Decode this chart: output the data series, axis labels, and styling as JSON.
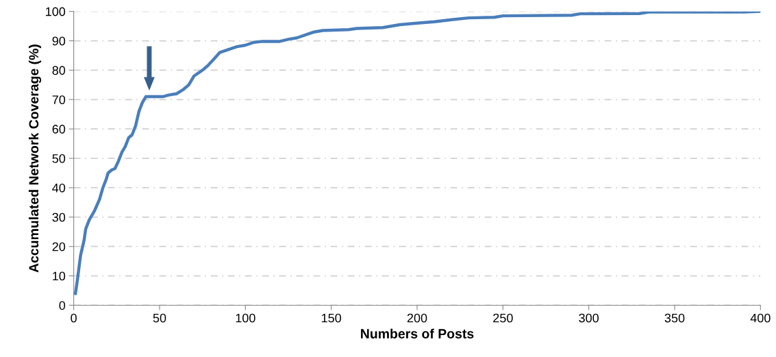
{
  "chart_data": {
    "type": "line",
    "xlabel": "Numbers of Posts",
    "ylabel": "Accumulated Network Coverage (%)",
    "x": [
      1,
      2,
      4,
      6,
      7,
      9,
      12,
      15,
      17,
      19,
      20,
      22,
      24,
      26,
      28,
      30,
      32,
      34,
      36,
      38,
      40,
      42,
      44,
      48,
      52,
      55,
      60,
      64,
      67,
      70,
      75,
      78,
      82,
      85,
      90,
      95,
      100,
      105,
      110,
      120,
      125,
      130,
      135,
      140,
      145,
      160,
      165,
      180,
      190,
      200,
      210,
      220,
      230,
      245,
      250,
      290,
      295,
      330,
      335,
      390,
      400
    ],
    "series": [
      {
        "color": "#4a7ebb",
        "values": [
          4,
          8,
          17,
          22,
          26,
          29,
          32,
          36,
          40,
          43,
          45,
          46,
          46.5,
          49,
          52,
          54,
          57,
          58,
          61,
          66,
          69,
          71,
          71,
          71,
          71,
          71.5,
          72,
          73.5,
          75,
          78,
          80,
          81.5,
          84,
          86,
          87,
          88,
          88.5,
          89.5,
          89.8,
          89.8,
          90.5,
          91,
          92,
          93,
          93.5,
          93.8,
          94.2,
          94.5,
          95.5,
          96,
          96.5,
          97.2,
          97.8,
          98,
          98.5,
          98.7,
          99.2,
          99.3,
          99.8,
          99.8,
          100
        ]
      }
    ],
    "xlim": [
      0,
      400
    ],
    "xticks": [
      0,
      50,
      100,
      150,
      200,
      250,
      300,
      350,
      400
    ],
    "ylim": [
      0,
      100
    ],
    "yticks": [
      0,
      10,
      20,
      30,
      40,
      50,
      60,
      70,
      80,
      90,
      100
    ],
    "grid": "y",
    "legend": false,
    "marker": "none",
    "line_style": "solid"
  }
}
